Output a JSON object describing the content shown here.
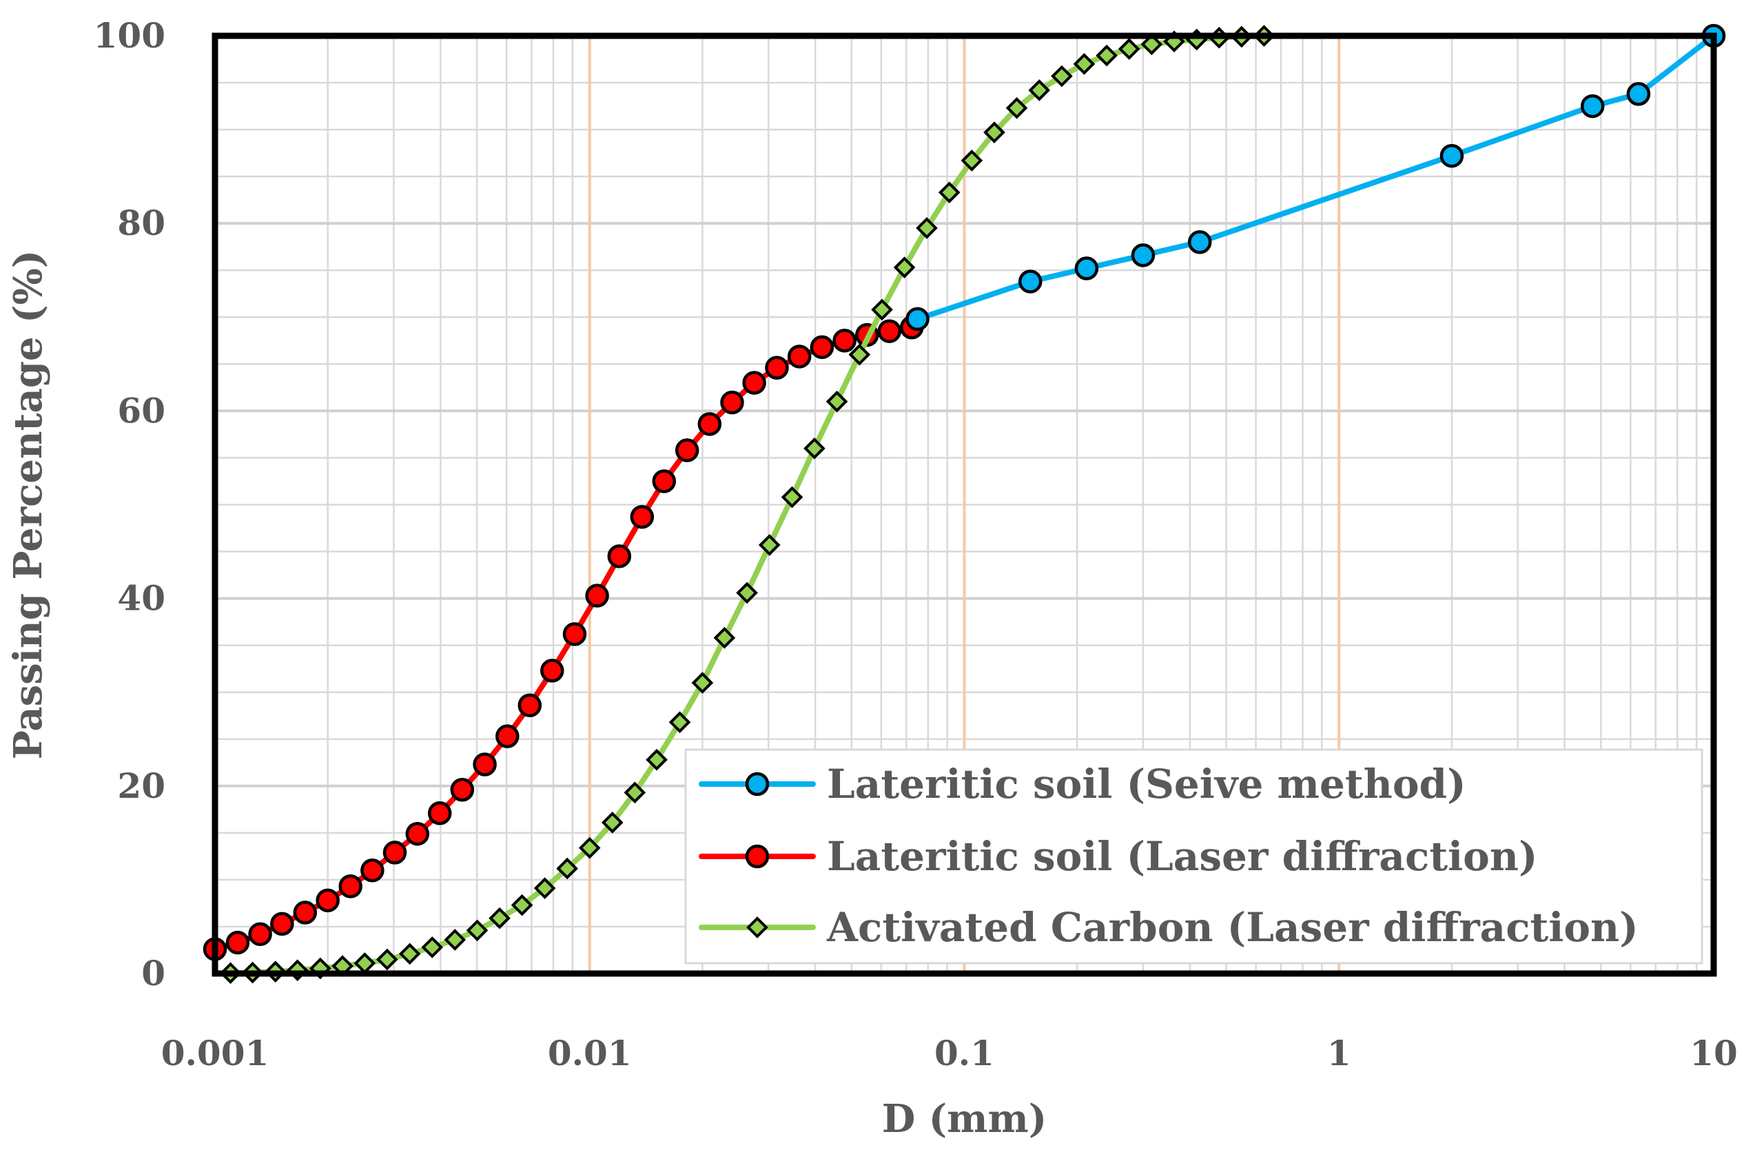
{
  "chart_data": {
    "type": "line",
    "title": "",
    "xlabel": "D (mm)",
    "ylabel": "Passing Percentage (%)",
    "xscale": "log",
    "xlim": [
      0.001,
      10
    ],
    "ylim": [
      0,
      100
    ],
    "xticks": [
      0.001,
      0.01,
      0.1,
      1,
      10
    ],
    "xtick_labels": [
      "0.001",
      "0.01",
      "0.1",
      "1",
      "10"
    ],
    "yticks": [
      0,
      20,
      40,
      60,
      80,
      100
    ],
    "ytick_labels": [
      "0",
      "20",
      "40",
      "60",
      "80",
      "100"
    ],
    "grid": true,
    "legend_position": "bottom-right",
    "colors": {
      "sieve": "#00B0F0",
      "laser_soil": "#FF0000",
      "carbon": "#92D050",
      "major_vertical_grid": "#F4C9A6",
      "minor_grid": "#D9D9D9",
      "frame": "#000000"
    },
    "series": [
      {
        "name": "Lateritic soil (Seive method)",
        "color": "#00B0F0",
        "marker": "circle",
        "x": [
          0.075,
          0.15,
          0.212,
          0.3,
          0.425,
          2,
          4.75,
          6.3,
          10
        ],
        "y": [
          69.8,
          73.8,
          75.2,
          76.6,
          78.0,
          87.2,
          92.5,
          93.8,
          100
        ]
      },
      {
        "name": "Lateritic soil (Laser diffraction)",
        "color": "#FF0000",
        "marker": "circle",
        "x": [
          0.001,
          0.00115,
          0.00132,
          0.00151,
          0.00174,
          0.002,
          0.0023,
          0.00263,
          0.00302,
          0.00347,
          0.00398,
          0.00457,
          0.00525,
          0.00603,
          0.00692,
          0.00794,
          0.00912,
          0.01047,
          0.012,
          0.0138,
          0.0158,
          0.0182,
          0.0209,
          0.024,
          0.0275,
          0.0316,
          0.0363,
          0.0417,
          0.0479,
          0.055,
          0.0631,
          0.0724
        ],
        "y": [
          2.6,
          3.3,
          4.2,
          5.3,
          6.5,
          7.8,
          9.3,
          11.0,
          12.9,
          14.9,
          17.1,
          19.6,
          22.3,
          25.3,
          28.6,
          32.3,
          36.2,
          40.3,
          44.5,
          48.7,
          52.5,
          55.8,
          58.6,
          60.9,
          63.0,
          64.6,
          65.8,
          66.8,
          67.5,
          68.1,
          68.5,
          68.9
        ]
      },
      {
        "name": "Activated Carbon (Laser diffraction)",
        "color": "#92D050",
        "marker": "diamond",
        "x": [
          0.0011,
          0.00126,
          0.00145,
          0.00166,
          0.00191,
          0.00219,
          0.00251,
          0.00288,
          0.00331,
          0.0038,
          0.00437,
          0.00501,
          0.00575,
          0.0066,
          0.00759,
          0.00871,
          0.01,
          0.0115,
          0.0132,
          0.0151,
          0.0174,
          0.02,
          0.0229,
          0.0263,
          0.0302,
          0.0347,
          0.0398,
          0.0457,
          0.0525,
          0.0603,
          0.0692,
          0.0794,
          0.0912,
          0.1047,
          0.1202,
          0.138,
          0.1585,
          0.182,
          0.2089,
          0.2399,
          0.2754,
          0.3162,
          0.3631,
          0.4169,
          0.4786,
          0.5495,
          0.631
        ],
        "y": [
          0.05,
          0.1,
          0.2,
          0.35,
          0.55,
          0.8,
          1.1,
          1.5,
          2.1,
          2.8,
          3.6,
          4.6,
          5.9,
          7.3,
          9.1,
          11.2,
          13.4,
          16.1,
          19.3,
          22.8,
          26.8,
          31.0,
          35.8,
          40.6,
          45.7,
          50.8,
          56.0,
          61.0,
          66.0,
          70.8,
          75.3,
          79.5,
          83.3,
          86.7,
          89.7,
          92.3,
          94.2,
          95.7,
          97.0,
          97.9,
          98.6,
          99.1,
          99.4,
          99.6,
          99.8,
          99.9,
          100.0
        ]
      }
    ]
  }
}
